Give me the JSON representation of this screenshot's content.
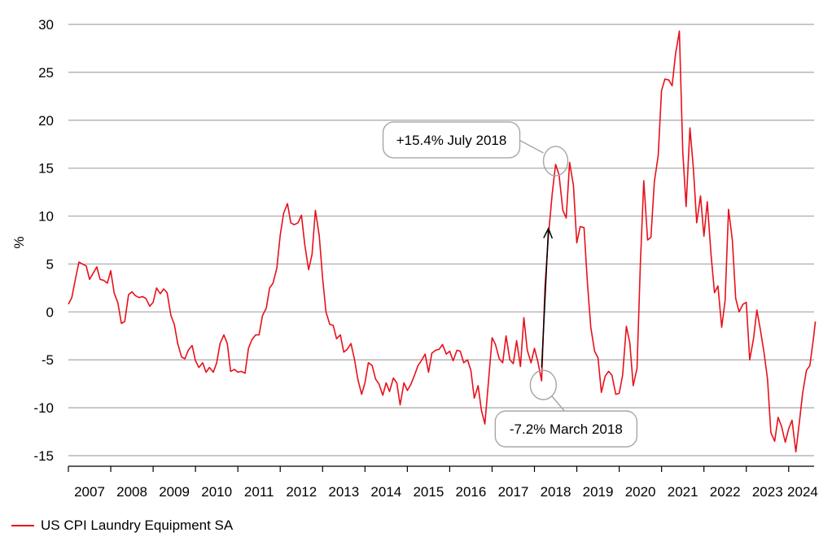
{
  "chart_data": {
    "type": "line",
    "title": "",
    "xlabel": "",
    "ylabel": "%",
    "ylim": [
      -15,
      30
    ],
    "yticks": [
      30,
      25,
      20,
      15,
      10,
      5,
      0,
      -5,
      -10,
      -15
    ],
    "xlim": [
      2007.0,
      2024.6
    ],
    "xtick_labels": [
      "2007",
      "2008",
      "2009",
      "2010",
      "2011",
      "2012",
      "2013",
      "2014",
      "2015",
      "2016",
      "2017",
      "2018",
      "2019",
      "2020",
      "2021",
      "2022",
      "2023",
      "2024"
    ],
    "grid": true,
    "legend_position": "bottom-left",
    "series": [
      {
        "name": "US CPI Laundry Equipment SA",
        "color": "#e8101a",
        "points": [
          [
            2007.0,
            0.8
          ],
          [
            2007.08,
            1.5
          ],
          [
            2007.17,
            3.5
          ],
          [
            2007.25,
            5.2
          ],
          [
            2007.33,
            5.0
          ],
          [
            2007.42,
            4.8
          ],
          [
            2007.5,
            3.4
          ],
          [
            2007.58,
            4.0
          ],
          [
            2007.67,
            4.7
          ],
          [
            2007.75,
            3.4
          ],
          [
            2007.83,
            3.3
          ],
          [
            2007.92,
            3.0
          ],
          [
            2008.0,
            4.3
          ],
          [
            2008.08,
            2.0
          ],
          [
            2008.17,
            0.9
          ],
          [
            2008.25,
            -1.2
          ],
          [
            2008.33,
            -1.0
          ],
          [
            2008.42,
            1.8
          ],
          [
            2008.5,
            2.1
          ],
          [
            2008.58,
            1.7
          ],
          [
            2008.67,
            1.5
          ],
          [
            2008.75,
            1.6
          ],
          [
            2008.83,
            1.4
          ],
          [
            2008.92,
            0.6
          ],
          [
            2009.0,
            1.0
          ],
          [
            2009.08,
            2.5
          ],
          [
            2009.17,
            1.9
          ],
          [
            2009.25,
            2.4
          ],
          [
            2009.33,
            2.0
          ],
          [
            2009.42,
            -0.4
          ],
          [
            2009.5,
            -1.3
          ],
          [
            2009.58,
            -3.3
          ],
          [
            2009.67,
            -4.7
          ],
          [
            2009.75,
            -4.9
          ],
          [
            2009.83,
            -4.0
          ],
          [
            2009.92,
            -3.5
          ],
          [
            2010.0,
            -5.1
          ],
          [
            2010.08,
            -5.8
          ],
          [
            2010.17,
            -5.3
          ],
          [
            2010.25,
            -6.3
          ],
          [
            2010.33,
            -5.8
          ],
          [
            2010.42,
            -6.3
          ],
          [
            2010.5,
            -5.3
          ],
          [
            2010.58,
            -3.3
          ],
          [
            2010.67,
            -2.4
          ],
          [
            2010.75,
            -3.3
          ],
          [
            2010.83,
            -6.2
          ],
          [
            2010.92,
            -6.0
          ],
          [
            2011.0,
            -6.3
          ],
          [
            2011.08,
            -6.2
          ],
          [
            2011.17,
            -6.4
          ],
          [
            2011.25,
            -3.8
          ],
          [
            2011.33,
            -2.9
          ],
          [
            2011.42,
            -2.4
          ],
          [
            2011.5,
            -2.4
          ],
          [
            2011.58,
            -0.4
          ],
          [
            2011.67,
            0.4
          ],
          [
            2011.75,
            2.5
          ],
          [
            2011.83,
            3.0
          ],
          [
            2011.92,
            4.6
          ],
          [
            2012.0,
            8.0
          ],
          [
            2012.08,
            10.3
          ],
          [
            2012.17,
            11.3
          ],
          [
            2012.25,
            9.3
          ],
          [
            2012.33,
            9.1
          ],
          [
            2012.42,
            9.3
          ],
          [
            2012.5,
            10.1
          ],
          [
            2012.58,
            7.0
          ],
          [
            2012.67,
            4.4
          ],
          [
            2012.75,
            6.0
          ],
          [
            2012.83,
            10.6
          ],
          [
            2012.92,
            8.0
          ],
          [
            2013.0,
            3.5
          ],
          [
            2013.08,
            0.0
          ],
          [
            2013.17,
            -1.3
          ],
          [
            2013.25,
            -1.4
          ],
          [
            2013.33,
            -2.8
          ],
          [
            2013.42,
            -2.4
          ],
          [
            2013.5,
            -4.2
          ],
          [
            2013.58,
            -3.9
          ],
          [
            2013.67,
            -3.3
          ],
          [
            2013.75,
            -4.9
          ],
          [
            2013.83,
            -7.0
          ],
          [
            2013.92,
            -8.6
          ],
          [
            2014.0,
            -7.4
          ],
          [
            2014.08,
            -5.3
          ],
          [
            2014.17,
            -5.6
          ],
          [
            2014.25,
            -7.0
          ],
          [
            2014.33,
            -7.5
          ],
          [
            2014.42,
            -8.7
          ],
          [
            2014.5,
            -7.4
          ],
          [
            2014.58,
            -8.3
          ],
          [
            2014.67,
            -6.9
          ],
          [
            2014.75,
            -7.4
          ],
          [
            2014.83,
            -9.7
          ],
          [
            2014.92,
            -7.4
          ],
          [
            2015.0,
            -8.2
          ],
          [
            2015.08,
            -7.6
          ],
          [
            2015.17,
            -6.6
          ],
          [
            2015.25,
            -5.6
          ],
          [
            2015.33,
            -5.1
          ],
          [
            2015.42,
            -4.4
          ],
          [
            2015.5,
            -6.3
          ],
          [
            2015.58,
            -4.3
          ],
          [
            2015.67,
            -4.0
          ],
          [
            2015.75,
            -3.9
          ],
          [
            2015.83,
            -3.4
          ],
          [
            2015.92,
            -4.4
          ],
          [
            2016.0,
            -4.1
          ],
          [
            2016.08,
            -5.1
          ],
          [
            2016.17,
            -4.0
          ],
          [
            2016.25,
            -4.1
          ],
          [
            2016.33,
            -5.3
          ],
          [
            2016.42,
            -5.0
          ],
          [
            2016.5,
            -6.1
          ],
          [
            2016.58,
            -9.0
          ],
          [
            2016.67,
            -7.7
          ],
          [
            2016.75,
            -10.3
          ],
          [
            2016.83,
            -11.7
          ],
          [
            2016.92,
            -7.0
          ],
          [
            2017.0,
            -2.7
          ],
          [
            2017.08,
            -3.4
          ],
          [
            2017.17,
            -4.9
          ],
          [
            2017.25,
            -5.3
          ],
          [
            2017.33,
            -2.5
          ],
          [
            2017.42,
            -5.0
          ],
          [
            2017.5,
            -5.4
          ],
          [
            2017.58,
            -3.0
          ],
          [
            2017.67,
            -5.7
          ],
          [
            2017.75,
            -0.6
          ],
          [
            2017.83,
            -4.0
          ],
          [
            2017.92,
            -5.3
          ],
          [
            2018.0,
            -3.8
          ],
          [
            2018.08,
            -5.2
          ],
          [
            2018.17,
            -7.2
          ],
          [
            2018.25,
            2.7
          ],
          [
            2018.33,
            8.0
          ],
          [
            2018.42,
            12.4
          ],
          [
            2018.5,
            15.4
          ],
          [
            2018.58,
            14.3
          ],
          [
            2018.67,
            10.6
          ],
          [
            2018.75,
            9.8
          ],
          [
            2018.83,
            15.6
          ],
          [
            2018.92,
            13.2
          ],
          [
            2019.0,
            7.2
          ],
          [
            2019.08,
            8.9
          ],
          [
            2019.17,
            8.8
          ],
          [
            2019.25,
            3.0
          ],
          [
            2019.33,
            -1.6
          ],
          [
            2019.42,
            -4.1
          ],
          [
            2019.5,
            -4.8
          ],
          [
            2019.58,
            -8.4
          ],
          [
            2019.67,
            -6.7
          ],
          [
            2019.75,
            -6.2
          ],
          [
            2019.83,
            -6.6
          ],
          [
            2019.92,
            -8.6
          ],
          [
            2020.0,
            -8.5
          ],
          [
            2020.08,
            -6.6
          ],
          [
            2020.17,
            -1.5
          ],
          [
            2020.25,
            -3.2
          ],
          [
            2020.33,
            -7.7
          ],
          [
            2020.42,
            -5.9
          ],
          [
            2020.5,
            5.0
          ],
          [
            2020.58,
            13.7
          ],
          [
            2020.67,
            7.5
          ],
          [
            2020.75,
            7.8
          ],
          [
            2020.83,
            13.6
          ],
          [
            2020.92,
            16.3
          ],
          [
            2021.0,
            23.1
          ],
          [
            2021.08,
            24.3
          ],
          [
            2021.17,
            24.2
          ],
          [
            2021.25,
            23.6
          ],
          [
            2021.33,
            26.9
          ],
          [
            2021.42,
            29.3
          ],
          [
            2021.5,
            16.7
          ],
          [
            2021.58,
            11.0
          ],
          [
            2021.67,
            19.2
          ],
          [
            2021.75,
            15.0
          ],
          [
            2021.83,
            9.3
          ],
          [
            2021.92,
            12.1
          ],
          [
            2022.0,
            7.9
          ],
          [
            2022.08,
            11.5
          ],
          [
            2022.17,
            5.9
          ],
          [
            2022.25,
            2.0
          ],
          [
            2022.33,
            2.7
          ],
          [
            2022.42,
            -1.6
          ],
          [
            2022.5,
            1.2
          ],
          [
            2022.58,
            10.7
          ],
          [
            2022.67,
            7.5
          ],
          [
            2022.75,
            1.4
          ],
          [
            2022.83,
            0.0
          ],
          [
            2022.92,
            0.8
          ],
          [
            2023.0,
            1.0
          ],
          [
            2023.08,
            -5.0
          ],
          [
            2023.17,
            -2.8
          ],
          [
            2023.25,
            0.2
          ],
          [
            2023.33,
            -1.8
          ],
          [
            2023.42,
            -4.3
          ],
          [
            2023.5,
            -7.0
          ],
          [
            2023.58,
            -12.6
          ],
          [
            2023.67,
            -13.5
          ],
          [
            2023.75,
            -11.0
          ],
          [
            2023.83,
            -11.9
          ],
          [
            2023.92,
            -13.6
          ],
          [
            2024.0,
            -12.2
          ],
          [
            2024.08,
            -11.3
          ],
          [
            2024.17,
            -14.6
          ],
          [
            2024.25,
            -11.6
          ],
          [
            2024.33,
            -8.5
          ],
          [
            2024.42,
            -6.1
          ],
          [
            2024.5,
            -5.6
          ],
          [
            2024.58,
            -2.9
          ],
          [
            2024.63,
            -1.0
          ]
        ]
      }
    ],
    "annotations": [
      {
        "id": "high",
        "text": "+15.4% July 2018",
        "x": 2018.5,
        "y": 15.4
      },
      {
        "id": "low",
        "text": "-7.2% March 2018",
        "x": 2018.17,
        "y": -7.2
      }
    ],
    "arrow": {
      "from": [
        2018.17,
        -5.8
      ],
      "to": [
        2018.33,
        8.7
      ]
    }
  },
  "legend": {
    "label": "US CPI Laundry Equipment SA"
  }
}
